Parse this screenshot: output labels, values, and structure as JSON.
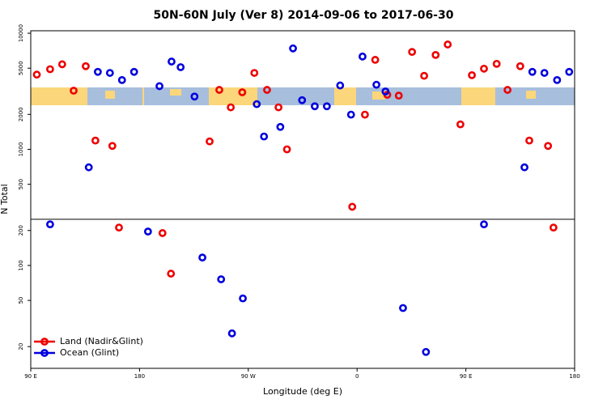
{
  "chart_data": {
    "type": "scatter",
    "title": "50N-60N July (Ver 8)   2014-09-06 to 2017-06-30",
    "x_label": "Longitude (deg E)",
    "y_label": "N Total",
    "log_y": true,
    "legend_position": "lower left",
    "xlim": [
      90,
      540
    ],
    "ylim": [
      13,
      10500
    ],
    "xticks": [
      {
        "value": 90,
        "label": "90 E"
      },
      {
        "value": 180,
        "label": "180"
      },
      {
        "value": 270,
        "label": "90 W"
      },
      {
        "value": 360,
        "label": "0"
      },
      {
        "value": 450,
        "label": "90 E"
      },
      {
        "value": 540,
        "label": "180"
      }
    ],
    "yticks": [
      20,
      50,
      100,
      200,
      500,
      1000,
      2000,
      5000,
      10000
    ],
    "hline": 250,
    "series": [
      {
        "name": "Land (Nadir&Glint)",
        "color": "#ee0000",
        "x": [
          95,
          106,
          116,
          125.5,
          135.5,
          143.5,
          157.5,
          163,
          199,
          206,
          238,
          246,
          255.5,
          265,
          275,
          285.5,
          295,
          302,
          356,
          366.5,
          375,
          385,
          394.5,
          405.5,
          415.5,
          425,
          435,
          445.5,
          455,
          465,
          475.5,
          484.5,
          495,
          502.5,
          518,
          522.5
        ],
        "values": [
          4400,
          4900,
          5400,
          3200,
          5200,
          1190,
          1070,
          212,
          190,
          85,
          1170,
          3250,
          2300,
          3100,
          4550,
          3250,
          2300,
          1000,
          320,
          1990,
          5900,
          2950,
          2900,
          6900,
          4300,
          6500,
          8000,
          1640,
          4350,
          4950,
          5450,
          3250,
          5200,
          1190,
          1070,
          212
        ]
      },
      {
        "name": "Ocean (Glint)",
        "color": "#0000dd",
        "x": [
          106,
          138,
          145.5,
          155.5,
          165.5,
          175.5,
          187,
          196.5,
          206.5,
          214,
          225.5,
          232,
          247.5,
          256.5,
          265.5,
          277,
          283,
          296.5,
          307,
          314.5,
          325,
          335,
          346,
          355,
          364.5,
          376,
          383.5,
          398,
          417,
          465,
          498.5,
          505,
          515,
          525.5,
          535.5
        ],
        "values": [
          226,
          700,
          4650,
          4550,
          3950,
          4650,
          196,
          3500,
          5700,
          5100,
          2850,
          117,
          76,
          26,
          52,
          2450,
          1290,
          1560,
          7400,
          2650,
          2350,
          2350,
          3550,
          1990,
          6300,
          3600,
          3150,
          43,
          18,
          226,
          700,
          4650,
          4550,
          3950,
          4650
        ]
      }
    ]
  }
}
